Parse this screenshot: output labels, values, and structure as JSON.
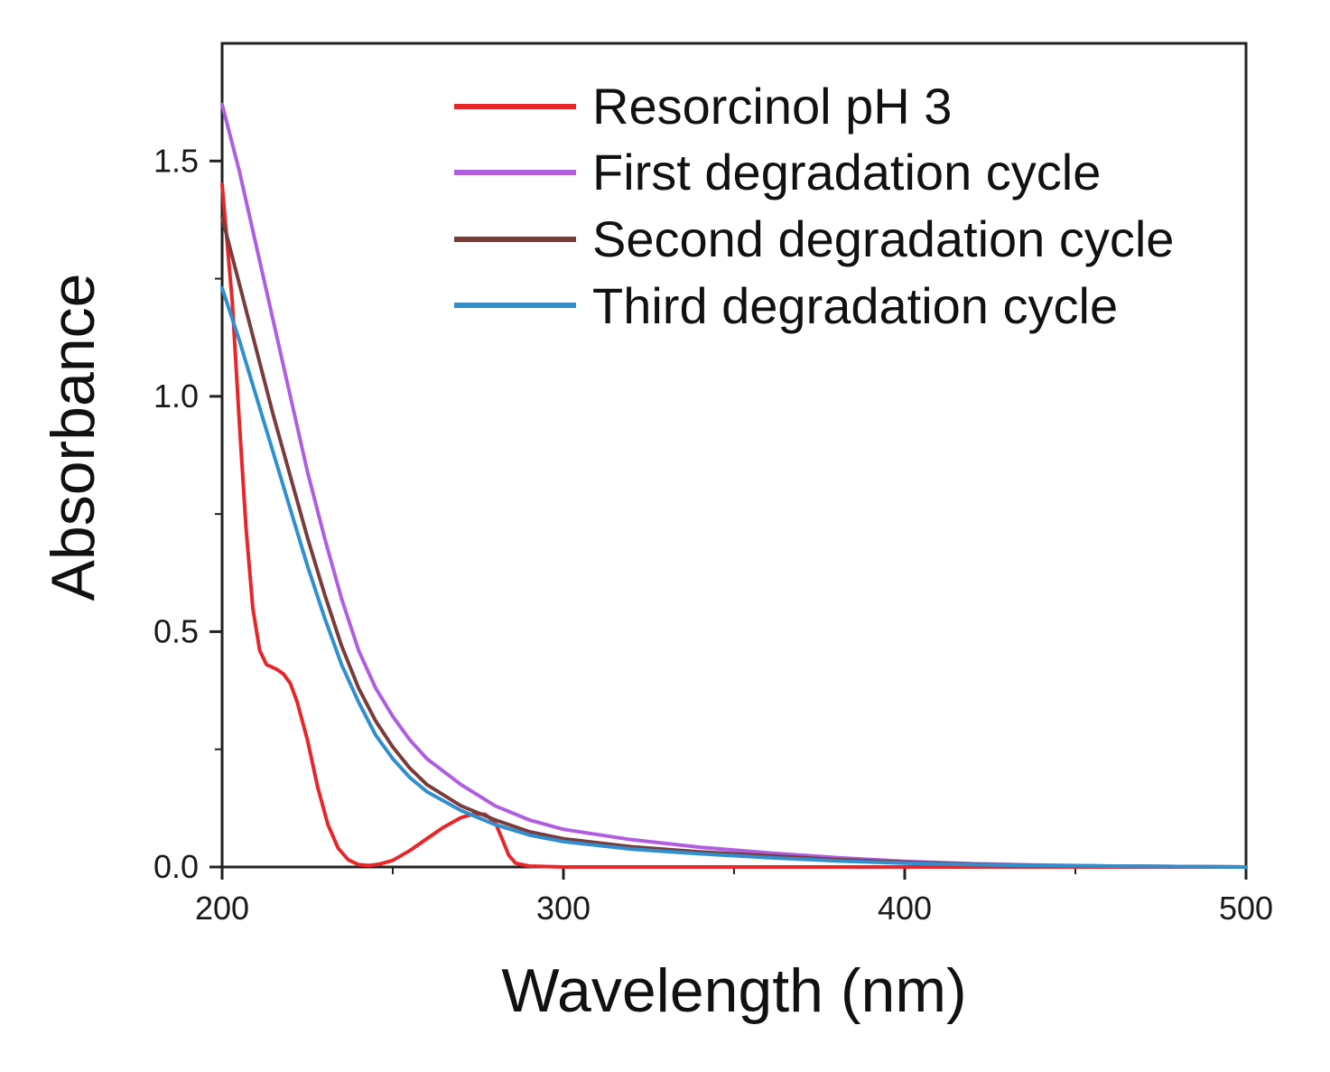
{
  "chart_data": {
    "type": "line",
    "title": "",
    "xlabel": "Wavelength (nm)",
    "ylabel": "Absorbance",
    "xlim": [
      200,
      500
    ],
    "ylim": [
      0,
      1.75
    ],
    "xticks": [
      200,
      300,
      400,
      500
    ],
    "xtick_labels": [
      "200",
      "300",
      "400",
      "500"
    ],
    "xminor": [
      250,
      350,
      450
    ],
    "yticks": [
      0,
      0.5,
      1.0,
      1.5
    ],
    "ytick_labels": [
      "0.0",
      "0.5",
      "1.0",
      "1.5"
    ],
    "yminor": [
      0.25,
      0.75,
      1.25
    ],
    "grid": false,
    "legend_position": "top-right",
    "series": [
      {
        "name": "Resorcinol pH 3",
        "color": "#e8262a",
        "points": [
          [
            200,
            1.45
          ],
          [
            203,
            1.2
          ],
          [
            205,
            0.95
          ],
          [
            207,
            0.72
          ],
          [
            209,
            0.55
          ],
          [
            211,
            0.46
          ],
          [
            213,
            0.43
          ],
          [
            216,
            0.42
          ],
          [
            218,
            0.41
          ],
          [
            220,
            0.39
          ],
          [
            222,
            0.35
          ],
          [
            225,
            0.27
          ],
          [
            228,
            0.17
          ],
          [
            231,
            0.09
          ],
          [
            234,
            0.04
          ],
          [
            237,
            0.015
          ],
          [
            240,
            0.005
          ],
          [
            243,
            0.003
          ],
          [
            246,
            0.006
          ],
          [
            250,
            0.014
          ],
          [
            255,
            0.035
          ],
          [
            260,
            0.06
          ],
          [
            265,
            0.085
          ],
          [
            270,
            0.105
          ],
          [
            274,
            0.113
          ],
          [
            277,
            0.112
          ],
          [
            280,
            0.095
          ],
          [
            282,
            0.06
          ],
          [
            284,
            0.025
          ],
          [
            286,
            0.008
          ],
          [
            290,
            0.002
          ],
          [
            300,
            0
          ],
          [
            400,
            0
          ],
          [
            500,
            0
          ]
        ]
      },
      {
        "name": "First degradation cycle",
        "color": "#b05ee0",
        "points": [
          [
            200,
            1.62
          ],
          [
            205,
            1.48
          ],
          [
            210,
            1.32
          ],
          [
            215,
            1.16
          ],
          [
            220,
            1.0
          ],
          [
            225,
            0.84
          ],
          [
            230,
            0.7
          ],
          [
            235,
            0.57
          ],
          [
            240,
            0.46
          ],
          [
            245,
            0.38
          ],
          [
            250,
            0.32
          ],
          [
            255,
            0.27
          ],
          [
            260,
            0.23
          ],
          [
            270,
            0.175
          ],
          [
            280,
            0.13
          ],
          [
            290,
            0.1
          ],
          [
            300,
            0.08
          ],
          [
            320,
            0.058
          ],
          [
            340,
            0.042
          ],
          [
            360,
            0.03
          ],
          [
            380,
            0.02
          ],
          [
            400,
            0.012
          ],
          [
            420,
            0.007
          ],
          [
            440,
            0.004
          ],
          [
            460,
            0.002
          ],
          [
            480,
            0.001
          ],
          [
            500,
            0
          ]
        ]
      },
      {
        "name": "Second degradation cycle",
        "color": "#7a3b3b",
        "points": [
          [
            200,
            1.38
          ],
          [
            205,
            1.24
          ],
          [
            210,
            1.1
          ],
          [
            215,
            0.96
          ],
          [
            220,
            0.83
          ],
          [
            225,
            0.7
          ],
          [
            230,
            0.58
          ],
          [
            235,
            0.47
          ],
          [
            240,
            0.38
          ],
          [
            245,
            0.31
          ],
          [
            250,
            0.255
          ],
          [
            255,
            0.21
          ],
          [
            260,
            0.175
          ],
          [
            270,
            0.13
          ],
          [
            280,
            0.1
          ],
          [
            290,
            0.075
          ],
          [
            300,
            0.06
          ],
          [
            320,
            0.043
          ],
          [
            340,
            0.032
          ],
          [
            360,
            0.024
          ],
          [
            380,
            0.016
          ],
          [
            400,
            0.01
          ],
          [
            420,
            0.006
          ],
          [
            440,
            0.003
          ],
          [
            460,
            0.002
          ],
          [
            480,
            0.001
          ],
          [
            500,
            0
          ]
        ]
      },
      {
        "name": "Third degradation cycle",
        "color": "#2f8fcf",
        "points": [
          [
            200,
            1.23
          ],
          [
            205,
            1.12
          ],
          [
            210,
            1.0
          ],
          [
            215,
            0.88
          ],
          [
            220,
            0.76
          ],
          [
            225,
            0.64
          ],
          [
            230,
            0.53
          ],
          [
            235,
            0.43
          ],
          [
            240,
            0.35
          ],
          [
            245,
            0.28
          ],
          [
            250,
            0.23
          ],
          [
            255,
            0.19
          ],
          [
            260,
            0.16
          ],
          [
            270,
            0.12
          ],
          [
            280,
            0.09
          ],
          [
            290,
            0.068
          ],
          [
            300,
            0.054
          ],
          [
            320,
            0.038
          ],
          [
            340,
            0.028
          ],
          [
            360,
            0.02
          ],
          [
            380,
            0.013
          ],
          [
            400,
            0.008
          ],
          [
            420,
            0.005
          ],
          [
            440,
            0.003
          ],
          [
            460,
            0.002
          ],
          [
            480,
            0.001
          ],
          [
            500,
            0
          ]
        ]
      }
    ]
  }
}
